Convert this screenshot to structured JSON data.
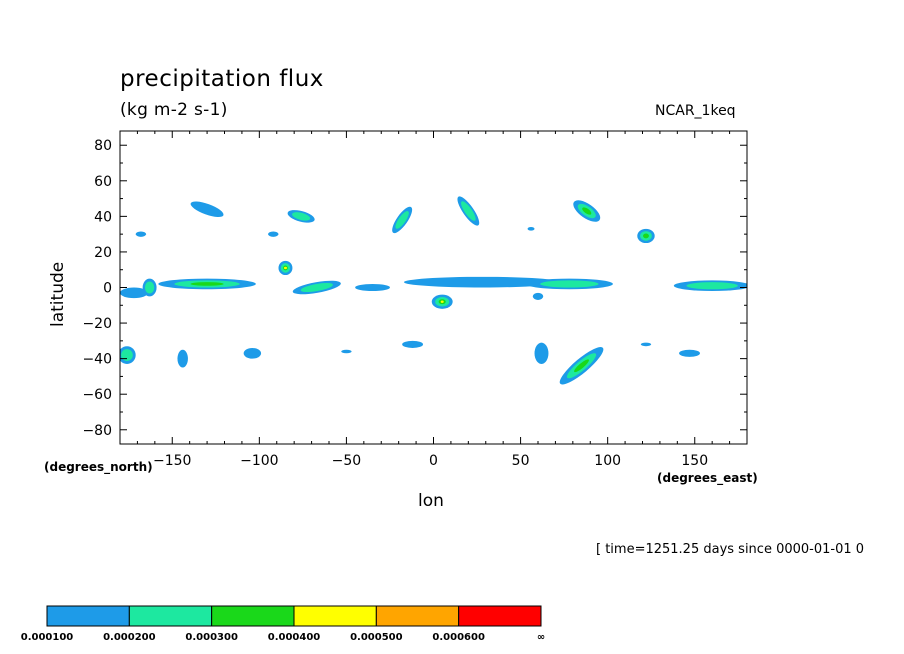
{
  "chart_data": {
    "type": "heatmap",
    "title": "precipitation flux",
    "units": "(kg m-2 s-1)",
    "model": "NCAR_1keq",
    "xlabel": "lon",
    "ylabel": "latitude",
    "x_units": "(degrees_east)",
    "y_units": "(degrees_north)",
    "time_info": "[ time=1251.25 days since 0000-01-01 0",
    "xlim": [
      -180,
      180
    ],
    "ylim": [
      -88,
      88
    ],
    "x_ticks": [
      -150,
      -100,
      -50,
      0,
      50,
      100,
      150
    ],
    "x_tick_labels": [
      "−150",
      "−100",
      "−50",
      "0",
      "50",
      "100",
      "150"
    ],
    "y_ticks": [
      80,
      60,
      40,
      20,
      0,
      -20,
      -40,
      -60,
      -80
    ],
    "y_tick_labels": [
      "80",
      "60",
      "40",
      "20",
      "0",
      "−20",
      "−40",
      "−60",
      "−80"
    ],
    "colorbar": {
      "colors": [
        "#1e9be8",
        "#1de8a0",
        "#1ad81a",
        "#ffff00",
        "#ffa500",
        "#ff0000"
      ],
      "labels": [
        "0.000100",
        "0.000200",
        "0.000300",
        "0.000400",
        "0.000500",
        "0.000600",
        "∞"
      ]
    },
    "features": [
      {
        "lon": -130,
        "lat": 44,
        "rx": 10,
        "ry": 3,
        "rot": 20,
        "level": 1
      },
      {
        "lon": -76,
        "lat": 40,
        "rx": 8,
        "ry": 3,
        "rot": 15,
        "level": 2
      },
      {
        "lon": -18,
        "lat": 38,
        "rx": 9,
        "ry": 3,
        "rot": -55,
        "level": 2
      },
      {
        "lon": 20,
        "lat": 43,
        "rx": 10,
        "ry": 3,
        "rot": 55,
        "level": 2
      },
      {
        "lon": 88,
        "lat": 43,
        "rx": 9,
        "ry": 4,
        "rot": 35,
        "level": 3
      },
      {
        "lon": 122,
        "lat": 29,
        "rx": 5,
        "ry": 4,
        "rot": 0,
        "level": 3
      },
      {
        "lon": -85,
        "lat": 11,
        "rx": 4,
        "ry": 4,
        "rot": 0,
        "level": 4
      },
      {
        "lon": -130,
        "lat": 2,
        "rx": 28,
        "ry": 3,
        "rot": 0,
        "level": 3
      },
      {
        "lon": -67,
        "lat": 0,
        "rx": 14,
        "ry": 3,
        "rot": -10,
        "level": 2
      },
      {
        "lon": 28,
        "lat": 3,
        "rx": 45,
        "ry": 3,
        "rot": 0,
        "level": 1
      },
      {
        "lon": 5,
        "lat": -8,
        "rx": 6,
        "ry": 4,
        "rot": 0,
        "level": 4
      },
      {
        "lon": 78,
        "lat": 2,
        "rx": 25,
        "ry": 3,
        "rot": 0,
        "level": 2
      },
      {
        "lon": 160,
        "lat": 1,
        "rx": 22,
        "ry": 3,
        "rot": 0,
        "level": 2
      },
      {
        "lon": -172,
        "lat": -3,
        "rx": 8,
        "ry": 3,
        "rot": 0,
        "level": 1
      },
      {
        "lon": -163,
        "lat": 0,
        "rx": 4,
        "ry": 5,
        "rot": 0,
        "level": 2
      },
      {
        "lon": -176,
        "lat": -38,
        "rx": 5,
        "ry": 5,
        "rot": 0,
        "level": 2
      },
      {
        "lon": -144,
        "lat": -40,
        "rx": 3,
        "ry": 5,
        "rot": 0,
        "level": 1
      },
      {
        "lon": -104,
        "lat": -37,
        "rx": 5,
        "ry": 3,
        "rot": 0,
        "level": 1
      },
      {
        "lon": 62,
        "lat": -37,
        "rx": 4,
        "ry": 6,
        "rot": 0,
        "level": 1
      },
      {
        "lon": 85,
        "lat": -44,
        "rx": 16,
        "ry": 4,
        "rot": -40,
        "level": 3
      },
      {
        "lon": 147,
        "lat": -37,
        "rx": 6,
        "ry": 2,
        "rot": 0,
        "level": 1
      },
      {
        "lon": -12,
        "lat": -32,
        "rx": 6,
        "ry": 2,
        "rot": 0,
        "level": 1
      },
      {
        "lon": -50,
        "lat": -36,
        "rx": 3,
        "ry": 1,
        "rot": 0,
        "level": 1
      },
      {
        "lon": -35,
        "lat": 0,
        "rx": 10,
        "ry": 2,
        "rot": 0,
        "level": 1
      },
      {
        "lon": -168,
        "lat": 30,
        "rx": 3,
        "ry": 1.5,
        "rot": 0,
        "level": 1
      },
      {
        "lon": -92,
        "lat": 30,
        "rx": 3,
        "ry": 1.5,
        "rot": 0,
        "level": 1
      },
      {
        "lon": 56,
        "lat": 33,
        "rx": 2,
        "ry": 1,
        "rot": 0,
        "level": 1
      },
      {
        "lon": 122,
        "lat": -32,
        "rx": 3,
        "ry": 1,
        "rot": 0,
        "level": 1
      },
      {
        "lon": 60,
        "lat": -5,
        "rx": 3,
        "ry": 2,
        "rot": 0,
        "level": 1
      }
    ]
  }
}
